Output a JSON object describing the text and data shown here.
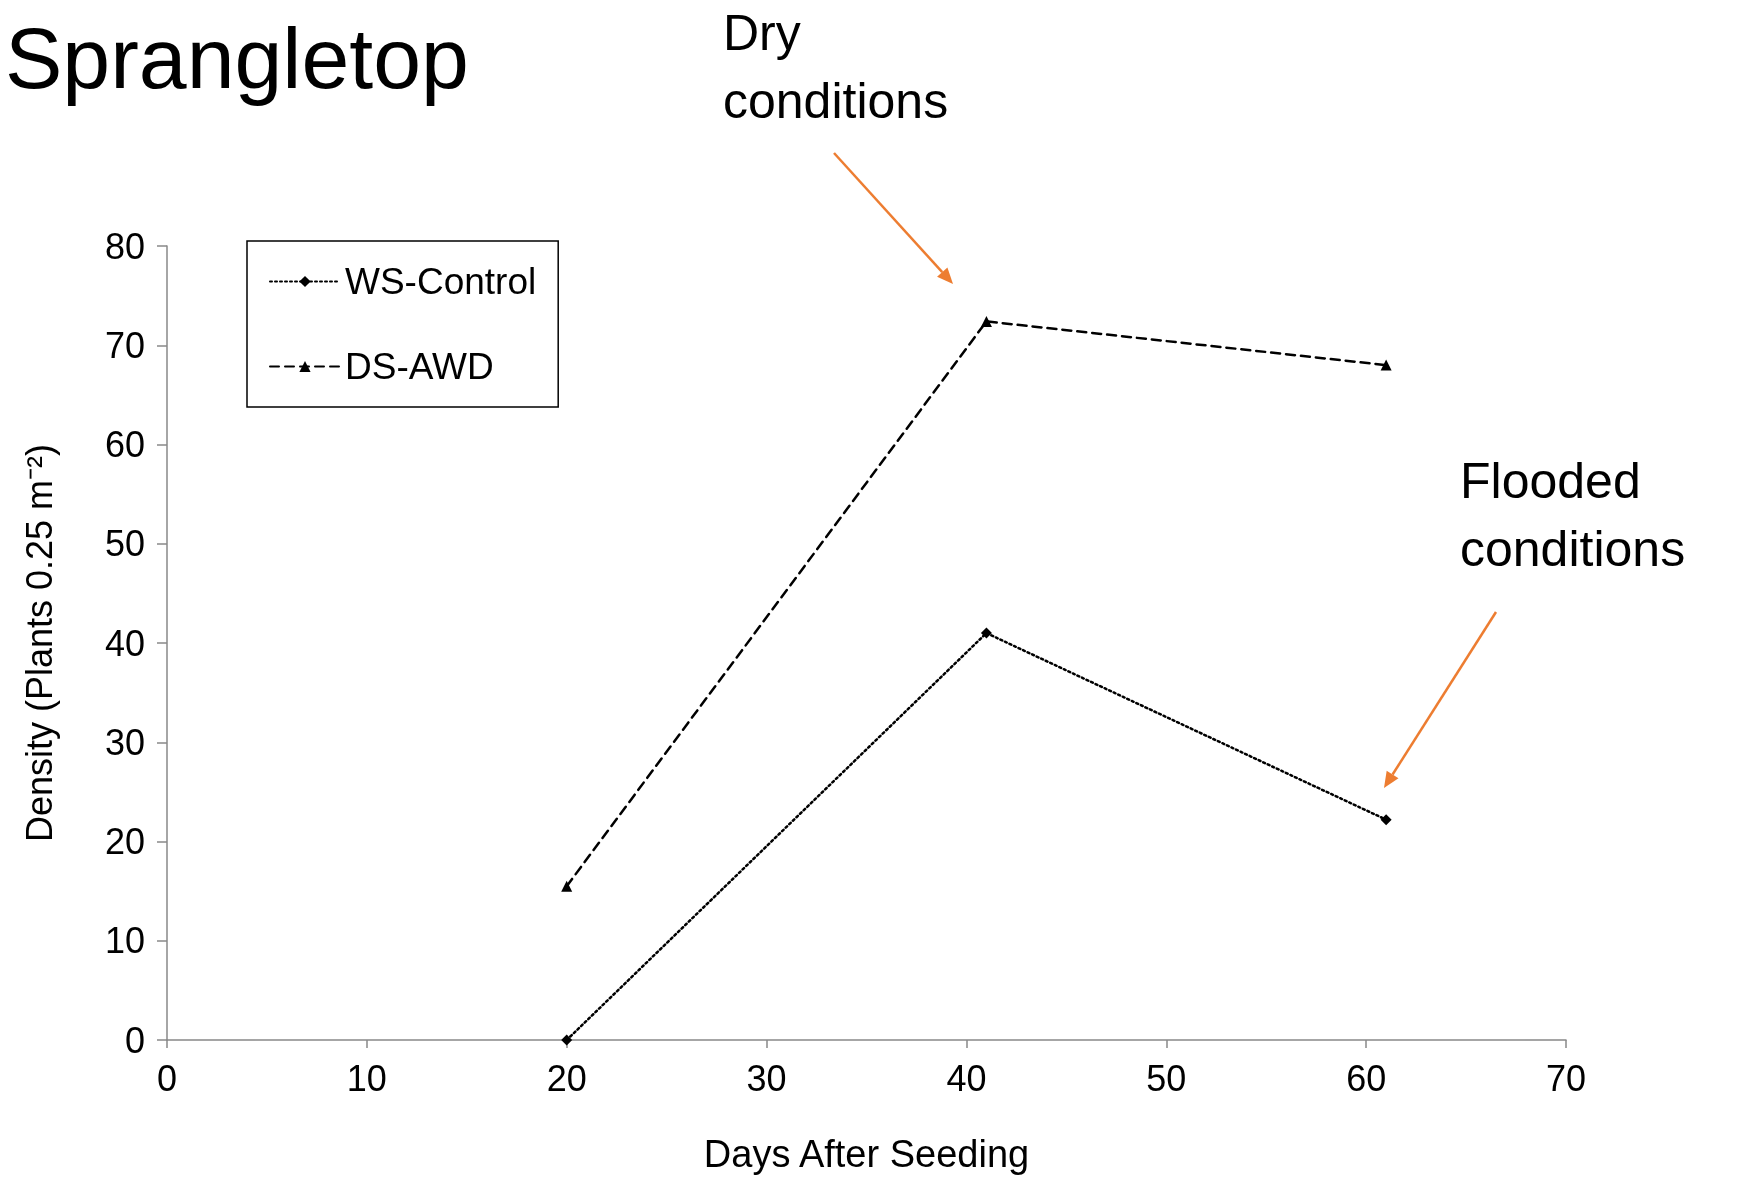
{
  "chart_data": {
    "type": "line",
    "title": "Sprangletop",
    "xlabel": "Days After Seeding",
    "ylabel": "Density (Plants 0.25 m⁻²)",
    "xlim": [
      0,
      70
    ],
    "xticks": [
      0,
      10,
      20,
      30,
      40,
      50,
      60,
      70
    ],
    "ylim": [
      0,
      80
    ],
    "yticks": [
      0,
      10,
      20,
      30,
      40,
      50,
      60,
      70,
      80
    ],
    "grid": false,
    "legend": "top left",
    "series": [
      {
        "name": "WS-Control",
        "color": "#000000",
        "x": [
          20,
          41,
          61
        ],
        "values": [
          0,
          41.0,
          22.2
        ],
        "line_style": "dotted",
        "marker": "diamond"
      },
      {
        "name": "DS-AWD",
        "color": "#000000",
        "x": [
          20,
          41,
          61
        ],
        "values": [
          15.5,
          72.4,
          68.0
        ],
        "line_style": "dashed",
        "marker": "triangle"
      }
    ],
    "annotations": [
      "Dry\nconditions",
      "Flooded\nconditions"
    ]
  }
}
